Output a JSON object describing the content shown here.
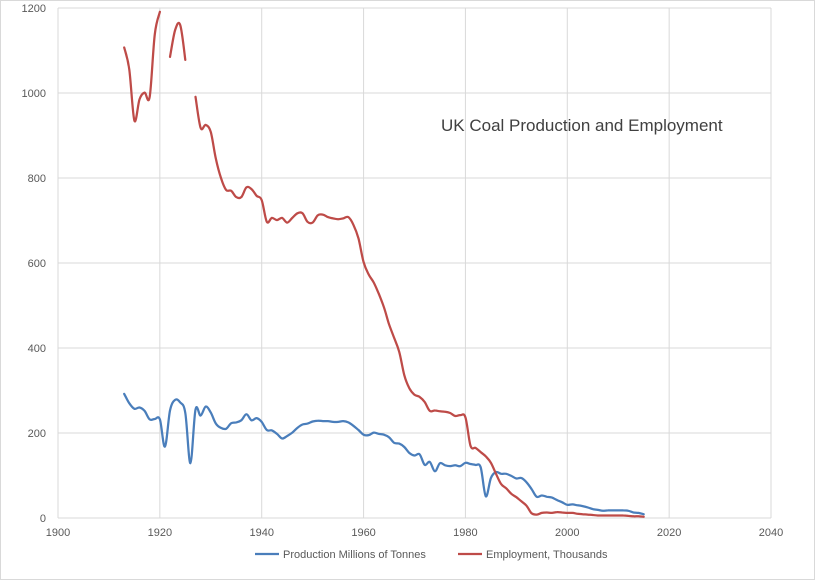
{
  "chart_data": {
    "type": "line",
    "title": "UK Coal Production and Employment",
    "xlabel": "",
    "ylabel": "",
    "xlim": [
      1900,
      2040
    ],
    "ylim": [
      0,
      1200
    ],
    "x_ticks": [
      1900,
      1920,
      1940,
      1960,
      1980,
      2000,
      2020,
      2040
    ],
    "y_ticks": [
      0,
      200,
      400,
      600,
      800,
      1000,
      1200
    ],
    "grid": true,
    "legend_position": "bottom",
    "series": [
      {
        "name": "Production Millions of Tonnes",
        "color": "#4a7ebb",
        "segments": [
          [
            [
              1913,
              292
            ],
            [
              1914,
              270
            ],
            [
              1915,
              257
            ],
            [
              1916,
              260
            ],
            [
              1917,
              252
            ],
            [
              1918,
              232
            ],
            [
              1919,
              233
            ],
            [
              1920,
              232
            ],
            [
              1921,
              168
            ],
            [
              1922,
              253
            ],
            [
              1923,
              278
            ],
            [
              1924,
              272
            ],
            [
              1925,
              247
            ],
            [
              1926,
              129
            ],
            [
              1927,
              255
            ],
            [
              1928,
              241
            ],
            [
              1929,
              262
            ],
            [
              1930,
              248
            ],
            [
              1931,
              222
            ],
            [
              1932,
              212
            ],
            [
              1933,
              210
            ],
            [
              1934,
              223
            ],
            [
              1935,
              225
            ],
            [
              1936,
              230
            ],
            [
              1937,
              244
            ],
            [
              1938,
              230
            ],
            [
              1939,
              235
            ],
            [
              1940,
              226
            ],
            [
              1941,
              207
            ],
            [
              1942,
              206
            ],
            [
              1943,
              198
            ],
            [
              1944,
              187
            ],
            [
              1945,
              193
            ],
            [
              1946,
              201
            ],
            [
              1947,
              212
            ],
            [
              1948,
              220
            ],
            [
              1949,
              222
            ],
            [
              1950,
              227
            ],
            [
              1951,
              229
            ],
            [
              1952,
              228
            ],
            [
              1953,
              228
            ],
            [
              1954,
              226
            ],
            [
              1955,
              226
            ],
            [
              1956,
              228
            ],
            [
              1957,
              225
            ],
            [
              1958,
              217
            ],
            [
              1959,
              207
            ],
            [
              1960,
              196
            ],
            [
              1961,
              195
            ],
            [
              1962,
              201
            ],
            [
              1963,
              198
            ],
            [
              1964,
              196
            ],
            [
              1965,
              190
            ],
            [
              1966,
              177
            ],
            [
              1967,
              175
            ],
            [
              1968,
              167
            ],
            [
              1969,
              153
            ],
            [
              1970,
              147
            ],
            [
              1971,
              150
            ],
            [
              1972,
              125
            ],
            [
              1973,
              132
            ],
            [
              1974,
              110
            ],
            [
              1975,
              129
            ],
            [
              1976,
              124
            ],
            [
              1977,
              122
            ],
            [
              1978,
              124
            ],
            [
              1979,
              122
            ],
            [
              1980,
              130
            ],
            [
              1981,
              127
            ],
            [
              1982,
              125
            ],
            [
              1983,
              119
            ],
            [
              1984,
              51
            ],
            [
              1985,
              94
            ],
            [
              1986,
              108
            ],
            [
              1987,
              104
            ],
            [
              1988,
              104
            ],
            [
              1989,
              99
            ],
            [
              1990,
              93
            ],
            [
              1991,
              94
            ],
            [
              1992,
              84
            ],
            [
              1993,
              68
            ],
            [
              1994,
              50
            ],
            [
              1995,
              53
            ],
            [
              1996,
              50
            ],
            [
              1997,
              48
            ],
            [
              1998,
              42
            ],
            [
              1999,
              37
            ],
            [
              2000,
              31
            ],
            [
              2001,
              32
            ],
            [
              2002,
              30
            ],
            [
              2003,
              28
            ],
            [
              2004,
              25
            ],
            [
              2005,
              21
            ],
            [
              2006,
              19
            ],
            [
              2007,
              17
            ],
            [
              2008,
              18
            ],
            [
              2009,
              18
            ],
            [
              2010,
              18
            ],
            [
              2011,
              18
            ],
            [
              2012,
              17
            ],
            [
              2013,
              13
            ],
            [
              2014,
              12
            ],
            [
              2015,
              9
            ]
          ]
        ]
      },
      {
        "name": "Employment, Thousands",
        "color": "#be4b48",
        "segments": [
          [
            [
              1913,
              1107
            ],
            [
              1914,
              1055
            ],
            [
              1915,
              935
            ],
            [
              1916,
              985
            ],
            [
              1917,
              1001
            ],
            [
              1918,
              991
            ],
            [
              1919,
              1138
            ],
            [
              1920,
              1191
            ]
          ],
          [
            [
              1922,
              1085
            ],
            [
              1923,
              1148
            ],
            [
              1924,
              1160
            ],
            [
              1925,
              1078
            ]
          ],
          [
            [
              1927,
              991
            ],
            [
              1928,
              918
            ],
            [
              1929,
              925
            ],
            [
              1930,
              908
            ],
            [
              1931,
              845
            ],
            [
              1932,
              800
            ],
            [
              1933,
              772
            ],
            [
              1934,
              770
            ],
            [
              1935,
              755
            ],
            [
              1936,
              755
            ],
            [
              1937,
              778
            ],
            [
              1938,
              774
            ],
            [
              1939,
              758
            ],
            [
              1940,
              748
            ],
            [
              1941,
              697
            ],
            [
              1942,
              706
            ],
            [
              1943,
              701
            ],
            [
              1944,
              706
            ],
            [
              1945,
              695
            ],
            [
              1946,
              706
            ],
            [
              1947,
              717
            ],
            [
              1948,
              717
            ],
            [
              1949,
              697
            ],
            [
              1950,
              695
            ],
            [
              1951,
              712
            ],
            [
              1952,
              714
            ],
            [
              1953,
              708
            ],
            [
              1954,
              705
            ],
            [
              1955,
              703
            ],
            [
              1956,
              705
            ],
            [
              1957,
              708
            ],
            [
              1958,
              690
            ],
            [
              1959,
              658
            ],
            [
              1960,
              602
            ],
            [
              1961,
              573
            ],
            [
              1962,
              554
            ],
            [
              1963,
              527
            ],
            [
              1964,
              496
            ],
            [
              1965,
              456
            ],
            [
              1966,
              424
            ],
            [
              1967,
              391
            ],
            [
              1968,
              336
            ],
            [
              1969,
              305
            ],
            [
              1970,
              290
            ],
            [
              1971,
              285
            ],
            [
              1972,
              273
            ],
            [
              1973,
              252
            ],
            [
              1974,
              253
            ],
            [
              1975,
              251
            ],
            [
              1976,
              250
            ],
            [
              1977,
              247
            ],
            [
              1978,
              240
            ],
            [
              1979,
              242
            ],
            [
              1980,
              237
            ],
            [
              1981,
              170
            ],
            [
              1982,
              165
            ],
            [
              1983,
              155
            ],
            [
              1984,
              145
            ],
            [
              1985,
              130
            ],
            [
              1986,
              104
            ],
            [
              1987,
              80
            ],
            [
              1988,
              70
            ],
            [
              1989,
              57
            ],
            [
              1990,
              49
            ],
            [
              1991,
              39
            ],
            [
              1992,
              29
            ],
            [
              1993,
              11
            ],
            [
              1994,
              8
            ],
            [
              1995,
              12
            ],
            [
              1996,
              13
            ],
            [
              1997,
              12
            ],
            [
              1998,
              14
            ],
            [
              1999,
              13
            ],
            [
              2000,
              12
            ],
            [
              2001,
              12
            ],
            [
              2002,
              10
            ],
            [
              2003,
              9
            ],
            [
              2004,
              8
            ],
            [
              2005,
              7
            ],
            [
              2006,
              6
            ],
            [
              2007,
              6
            ],
            [
              2008,
              6
            ],
            [
              2009,
              6
            ],
            [
              2010,
              6
            ],
            [
              2011,
              6
            ],
            [
              2012,
              5
            ],
            [
              2013,
              4
            ],
            [
              2014,
              4
            ],
            [
              2015,
              3
            ]
          ]
        ]
      }
    ]
  }
}
